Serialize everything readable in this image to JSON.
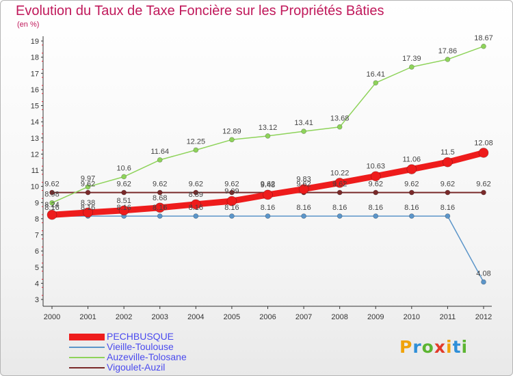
{
  "header": {
    "title": "Evolution du Taux de Taxe Foncière sur les Propriétés Bâties",
    "unit": "(en %)"
  },
  "logo": {
    "letters": [
      "P",
      "r",
      "o",
      "x",
      "i",
      "t",
      "i"
    ],
    "colors": [
      "#f0a30a",
      "#2f8fd8",
      "#5cb531",
      "#e23b2a",
      "#f0a30a",
      "#2f8fd8",
      "#5cb531"
    ]
  },
  "chart_data": {
    "type": "line",
    "x": [
      "2000",
      "2001",
      "2002",
      "2003",
      "2004",
      "2005",
      "2006",
      "2007",
      "2008",
      "2009",
      "2010",
      "2011",
      "2012"
    ],
    "ylim": [
      3,
      19
    ],
    "yticks": [
      "3",
      "4",
      "5",
      "6",
      "7",
      "8",
      "9",
      "10",
      "11",
      "12",
      "13",
      "14",
      "15",
      "16",
      "17",
      "18",
      "19"
    ],
    "grid": false,
    "legend_position": "bottom-left",
    "series": [
      {
        "name": "Vigoulet-Auzil",
        "color": "#7a2a2a",
        "values": [
          9.62,
          9.62,
          9.62,
          9.62,
          9.62,
          9.62,
          9.62,
          9.62,
          9.62,
          9.62,
          9.62,
          9.62,
          9.62
        ],
        "labels": [
          "9.62",
          "9.62",
          "9.62",
          "9.62",
          "9.62",
          "9.62",
          "9.62",
          "9.62",
          "9.62",
          "9.62",
          "9.62",
          "9.62",
          "9.62"
        ]
      },
      {
        "name": "Auzeville-Tolosane",
        "color": "#8ed35a",
        "values": [
          8.98,
          9.97,
          10.6,
          11.64,
          12.25,
          12.89,
          13.12,
          13.41,
          13.68,
          16.41,
          17.39,
          17.86,
          18.67
        ],
        "labels": [
          "8.98",
          "9.97",
          "10.6",
          "11.64",
          "12.25",
          "12.89",
          "13.12",
          "13.41",
          "13.68",
          "16.41",
          "17.39",
          "17.86",
          "18.67"
        ]
      },
      {
        "name": "Vieille-Toulouse",
        "color": "#5b95c9",
        "values": [
          8.16,
          8.16,
          8.16,
          8.16,
          8.16,
          8.16,
          8.16,
          8.16,
          8.16,
          8.16,
          8.16,
          8.16,
          4.08
        ],
        "labels": [
          "8.16",
          "8.16",
          "8.16",
          "8.16",
          "8.16",
          "8.16",
          "8.16",
          "8.16",
          "8.16",
          "8.16",
          "8.16",
          "8.16",
          "4.08"
        ]
      },
      {
        "name": "PECHBUSQUE",
        "color": "#ee1c1c",
        "values": [
          8.24,
          8.38,
          8.51,
          8.68,
          8.89,
          9.09,
          9.48,
          9.83,
          10.22,
          10.63,
          11.06,
          11.5,
          12.08
        ],
        "labels": [
          "8.24",
          "8.38",
          "8.51",
          "8.68",
          "8.89",
          "9.09",
          "9.48",
          "9.83",
          "10.22",
          "10.63",
          "11.06",
          "11.5",
          "12.08"
        ]
      }
    ],
    "legend": [
      "PECHBUSQUE",
      "Vieille-Toulouse",
      "Auzeville-Tolosane",
      "Vigoulet-Auzil"
    ]
  }
}
